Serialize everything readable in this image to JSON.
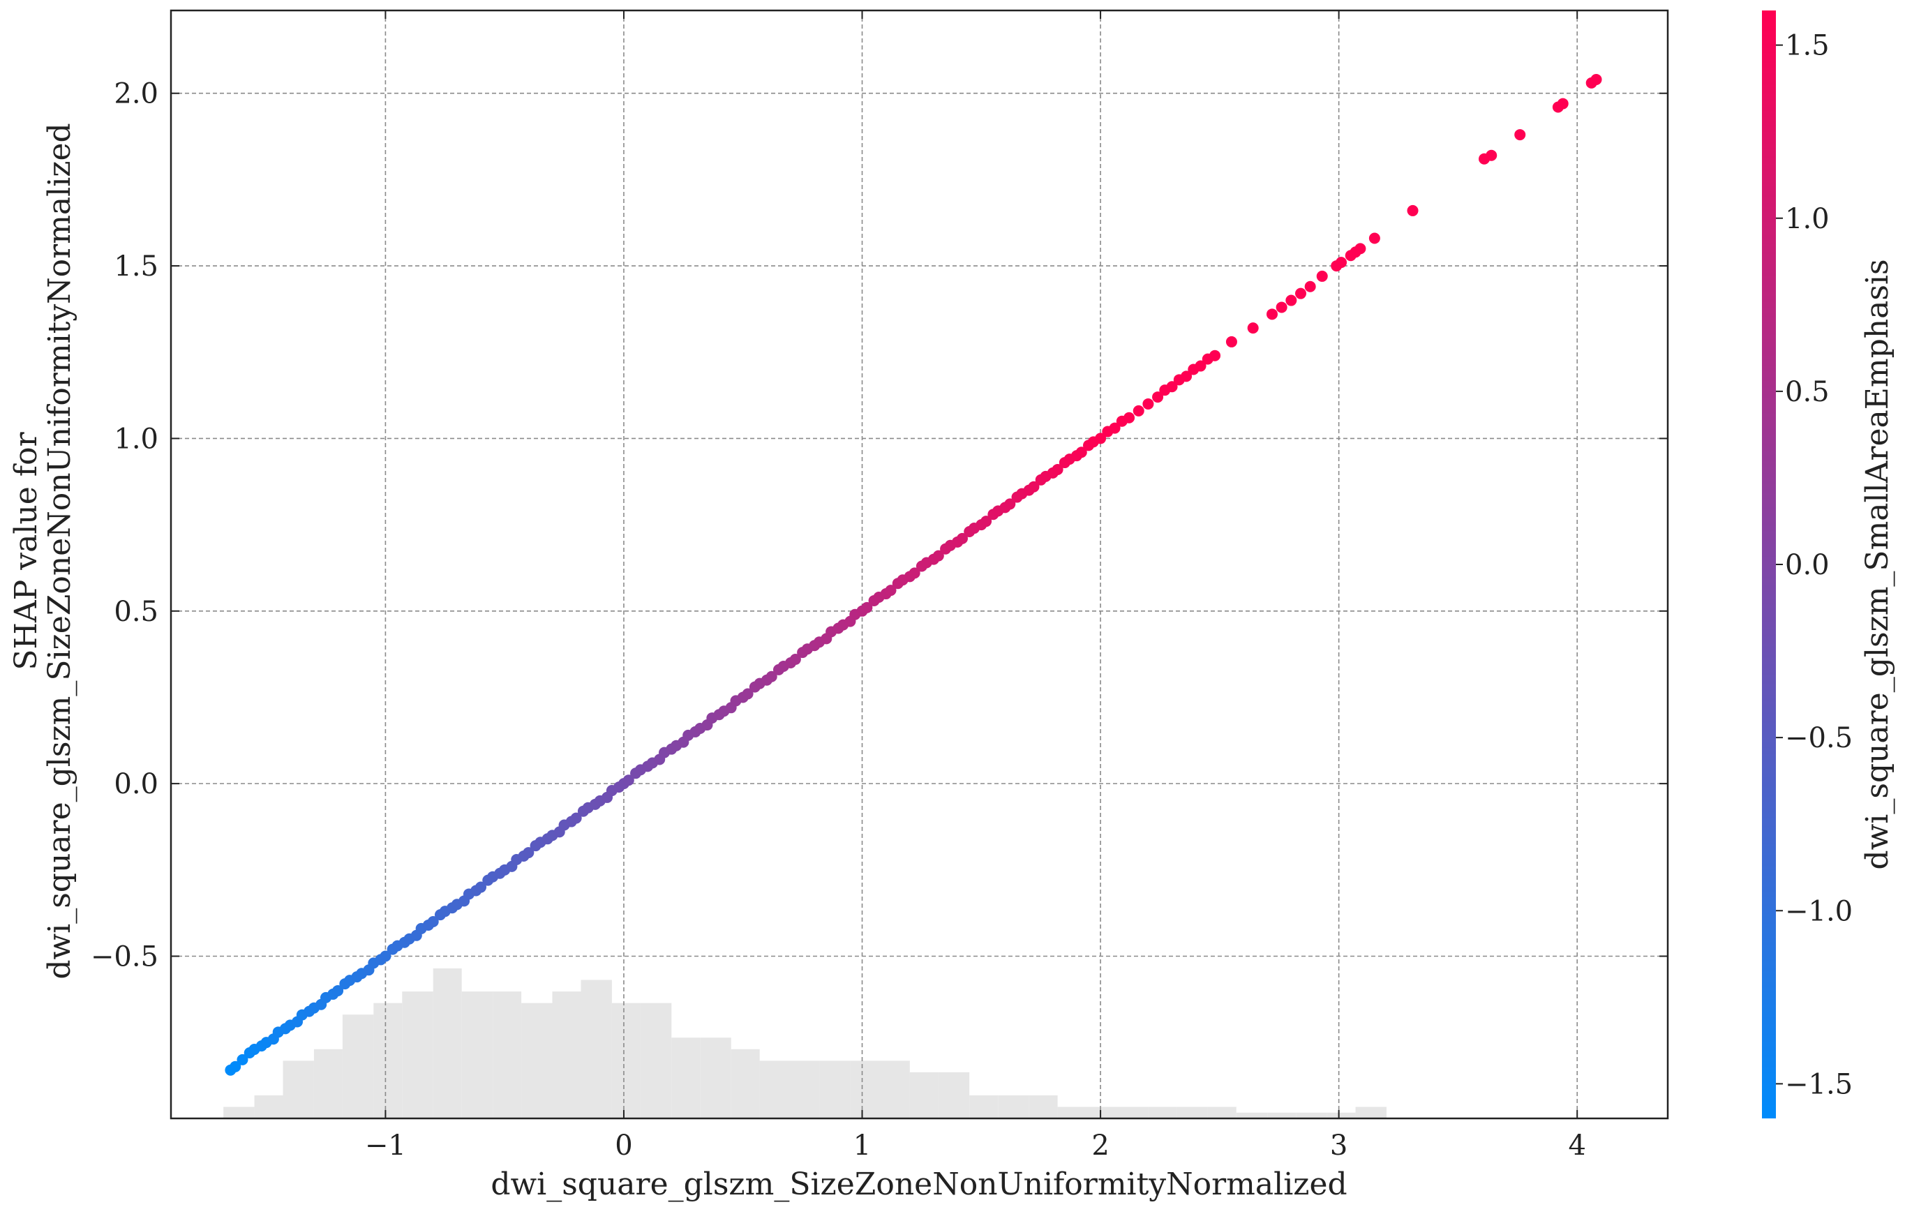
{
  "chart_data": {
    "type": "scatter",
    "title": "",
    "xlabel": "dwi_square_glszm_SizeZoneNonUniformityNormalized",
    "ylabel_lines": [
      "SHAP value for",
      "dwi_square_glszm_SizeZoneNonUniformityNormalized"
    ],
    "xlim": [
      -1.9,
      4.38
    ],
    "ylim": [
      -0.97,
      2.24
    ],
    "xticks": [
      -1,
      0,
      1,
      2,
      3,
      4
    ],
    "xtick_labels": [
      "−1",
      "0",
      "1",
      "2",
      "3",
      "4"
    ],
    "yticks": [
      -0.5,
      0.0,
      0.5,
      1.0,
      1.5,
      2.0
    ],
    "ytick_labels": [
      "−0.5",
      "0.0",
      "0.5",
      "1.0",
      "1.5",
      "2.0"
    ],
    "grid": true,
    "colorbar": {
      "label": "dwi_square_glszm_SmallAreaEmphasis",
      "range": [
        -1.6,
        1.6
      ],
      "ticks": [
        -1.5,
        -1.0,
        -0.5,
        0.0,
        0.5,
        1.0,
        1.5
      ],
      "tick_labels": [
        "−1.5",
        "−1.0",
        "−0.5",
        "0.0",
        "0.5",
        "1.0",
        "1.5"
      ],
      "colors": [
        "#008bfb",
        "#ff0052"
      ]
    },
    "point_colors": {
      "low": "#008bfb",
      "high": "#ff0052"
    },
    "scatter_x": [
      -1.65,
      -1.63,
      -1.6,
      -1.57,
      -1.55,
      -1.52,
      -1.5,
      -1.47,
      -1.45,
      -1.42,
      -1.4,
      -1.37,
      -1.35,
      -1.32,
      -1.3,
      -1.27,
      -1.25,
      -1.22,
      -1.2,
      -1.17,
      -1.15,
      -1.12,
      -1.1,
      -1.07,
      -1.05,
      -1.02,
      -1.0,
      -0.97,
      -0.95,
      -0.92,
      -0.9,
      -0.87,
      -0.85,
      -0.82,
      -0.8,
      -0.77,
      -0.75,
      -0.72,
      -0.7,
      -0.67,
      -0.65,
      -0.62,
      -0.6,
      -0.57,
      -0.55,
      -0.52,
      -0.5,
      -0.47,
      -0.45,
      -0.42,
      -0.4,
      -0.37,
      -0.35,
      -0.32,
      -0.3,
      -0.27,
      -0.25,
      -0.22,
      -0.2,
      -0.17,
      -0.15,
      -0.12,
      -0.1,
      -0.07,
      -0.05,
      -0.02,
      0.0,
      0.02,
      0.05,
      0.07,
      0.1,
      0.12,
      0.15,
      0.17,
      0.2,
      0.22,
      0.25,
      0.27,
      0.3,
      0.32,
      0.35,
      0.37,
      0.4,
      0.42,
      0.45,
      0.47,
      0.5,
      0.52,
      0.55,
      0.57,
      0.6,
      0.62,
      0.65,
      0.67,
      0.7,
      0.72,
      0.75,
      0.77,
      0.8,
      0.82,
      0.85,
      0.87,
      0.9,
      0.92,
      0.95,
      0.97,
      1.0,
      1.02,
      1.05,
      1.07,
      1.1,
      1.12,
      1.15,
      1.17,
      1.2,
      1.22,
      1.25,
      1.27,
      1.3,
      1.32,
      1.35,
      1.37,
      1.4,
      1.42,
      1.45,
      1.47,
      1.5,
      1.52,
      1.55,
      1.57,
      1.6,
      1.62,
      1.65,
      1.67,
      1.7,
      1.72,
      1.75,
      1.77,
      1.8,
      1.82,
      1.85,
      1.87,
      1.9,
      1.92,
      1.95,
      1.97,
      2.0,
      2.03,
      2.06,
      2.09,
      2.12,
      2.16,
      2.2,
      2.24,
      2.27,
      2.3,
      2.33,
      2.36,
      2.39,
      2.42,
      2.45,
      2.48,
      2.55,
      2.64,
      2.72,
      2.76,
      2.8,
      2.84,
      2.88,
      2.93,
      2.99,
      3.01,
      3.05,
      3.07,
      3.09,
      3.15,
      3.31,
      3.61,
      3.64,
      3.76,
      3.92,
      3.94,
      4.06,
      4.08
    ],
    "scatter_y": [
      -0.83,
      -0.82,
      -0.8,
      -0.78,
      -0.77,
      -0.76,
      -0.75,
      -0.74,
      -0.72,
      -0.71,
      -0.7,
      -0.69,
      -0.67,
      -0.66,
      -0.65,
      -0.64,
      -0.62,
      -0.61,
      -0.6,
      -0.58,
      -0.57,
      -0.56,
      -0.55,
      -0.54,
      -0.52,
      -0.51,
      -0.5,
      -0.48,
      -0.47,
      -0.46,
      -0.45,
      -0.44,
      -0.42,
      -0.41,
      -0.4,
      -0.38,
      -0.37,
      -0.36,
      -0.35,
      -0.34,
      -0.32,
      -0.31,
      -0.3,
      -0.28,
      -0.27,
      -0.26,
      -0.25,
      -0.24,
      -0.22,
      -0.21,
      -0.2,
      -0.18,
      -0.17,
      -0.16,
      -0.15,
      -0.14,
      -0.12,
      -0.11,
      -0.1,
      -0.08,
      -0.07,
      -0.06,
      -0.05,
      -0.04,
      -0.02,
      -0.01,
      0.0,
      0.01,
      0.03,
      0.04,
      0.05,
      0.06,
      0.07,
      0.09,
      0.1,
      0.11,
      0.12,
      0.14,
      0.15,
      0.16,
      0.17,
      0.19,
      0.2,
      0.21,
      0.22,
      0.24,
      0.25,
      0.26,
      0.28,
      0.29,
      0.3,
      0.31,
      0.33,
      0.34,
      0.35,
      0.36,
      0.38,
      0.39,
      0.4,
      0.41,
      0.42,
      0.44,
      0.45,
      0.46,
      0.47,
      0.49,
      0.5,
      0.51,
      0.53,
      0.54,
      0.55,
      0.56,
      0.58,
      0.59,
      0.6,
      0.61,
      0.63,
      0.64,
      0.65,
      0.66,
      0.68,
      0.69,
      0.7,
      0.71,
      0.73,
      0.74,
      0.75,
      0.76,
      0.78,
      0.79,
      0.8,
      0.81,
      0.83,
      0.84,
      0.85,
      0.86,
      0.88,
      0.89,
      0.9,
      0.91,
      0.93,
      0.94,
      0.95,
      0.96,
      0.98,
      0.99,
      1.0,
      1.02,
      1.03,
      1.05,
      1.06,
      1.08,
      1.1,
      1.12,
      1.14,
      1.15,
      1.17,
      1.18,
      1.2,
      1.21,
      1.23,
      1.24,
      1.28,
      1.32,
      1.36,
      1.38,
      1.4,
      1.42,
      1.44,
      1.47,
      1.5,
      1.51,
      1.53,
      1.54,
      1.55,
      1.58,
      1.66,
      1.81,
      1.82,
      1.88,
      1.96,
      1.97,
      2.03,
      2.04
    ],
    "histogram": {
      "bin_edges": [
        -1.68,
        -1.55,
        -1.43,
        -1.3,
        -1.18,
        -1.05,
        -0.93,
        -0.8,
        -0.68,
        -0.55,
        -0.43,
        -0.3,
        -0.18,
        -0.05,
        0.07,
        0.2,
        0.32,
        0.45,
        0.57,
        0.7,
        0.82,
        0.95,
        1.07,
        1.2,
        1.32,
        1.45,
        1.57,
        1.7,
        1.82,
        1.95,
        2.07,
        2.2,
        2.32,
        2.45,
        2.57,
        2.7,
        2.82,
        2.95,
        3.07,
        3.2
      ],
      "counts": [
        1,
        2,
        5,
        6,
        9,
        10,
        11,
        13,
        11,
        11,
        10,
        11,
        12,
        10,
        10,
        7,
        7,
        6,
        5,
        5,
        5,
        5,
        5,
        4,
        4,
        2,
        2,
        2,
        1,
        1,
        1,
        1,
        1,
        1,
        0.5,
        0.5,
        0.5,
        0.5,
        1
      ]
    }
  }
}
